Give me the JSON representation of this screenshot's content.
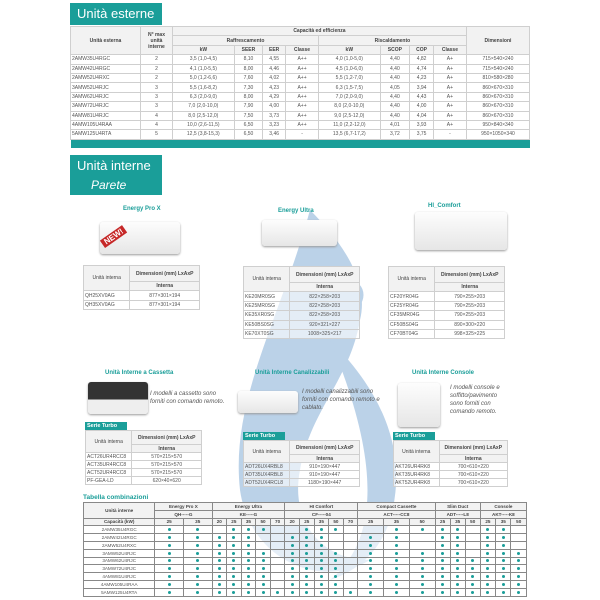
{
  "outdoor": {
    "title": "Unità esterne",
    "headers": {
      "unit": "Unità esterna",
      "max": "N° max unità interne",
      "group": "Capacità ed efficienza",
      "cool": "Raffrescamento",
      "heat": "Riscaldamento",
      "dim": "Dimensioni",
      "kw": "kW",
      "seer": "SEER",
      "eer": "EER",
      "classe": "Classe",
      "scop": "SCOP",
      "cop": "COP"
    },
    "rows": [
      [
        "2AMW35U4RGC",
        "2",
        "3,5 (1,0-4,5)",
        "8,10",
        "4,55",
        "A++",
        "4,0 (1,0-5,0)",
        "4,40",
        "4,82",
        "A+",
        "715×540×240"
      ],
      [
        "2AMW42U4RGC",
        "2",
        "4,1 (1,0-5,5)",
        "8,00",
        "4,46",
        "A++",
        "4,5 (1,0-6,0)",
        "4,40",
        "4,74",
        "A+",
        "715×540×240"
      ],
      [
        "2AMW52U4RXC",
        "2",
        "5,0 (1,2-6,6)",
        "7,60",
        "4,02",
        "A++",
        "5,5 (1,2-7,0)",
        "4,40",
        "4,23",
        "A+",
        "810×580×280"
      ],
      [
        "3AMW52U4RJC",
        "3",
        "5,5 (1,6-8,2)",
        "7,30",
        "4,23",
        "A++",
        "6,3 (1,5-7,5)",
        "4,05",
        "3,94",
        "A+",
        "860×670×310"
      ],
      [
        "3AMW62U4RJC",
        "3",
        "6,3 (2,0-9,0)",
        "8,00",
        "4,29",
        "A++",
        "7,0 (2,0-9,0)",
        "4,40",
        "4,43",
        "A+",
        "860×670×310"
      ],
      [
        "3AMW72U4RJC",
        "3",
        "7,0 (2,0-10,0)",
        "7,90",
        "4,00",
        "A++",
        "8,0 (2,0-10,0)",
        "4,40",
        "4,00",
        "A+",
        "860×670×310"
      ],
      [
        "4AMW81U4RJC",
        "4",
        "8,0 (2,5-12,0)",
        "7,50",
        "3,73",
        "A++",
        "9,0 (2,5-12,0)",
        "4,40",
        "4,04",
        "A+",
        "860×670×310"
      ],
      [
        "4AMW105U4RAA",
        "4",
        "10,0 (2,6-11,5)",
        "6,50",
        "3,23",
        "A++",
        "11,0 (2,2-12,0)",
        "4,01",
        "3,93",
        "A+",
        "950×840×340"
      ],
      [
        "5AMW125U4RTA",
        "5",
        "12,5 (3,8-15,3)",
        "6,50",
        "3,46",
        "-",
        "13,5 (6,7-17,2)",
        "3,72",
        "3,75",
        "-",
        "950×1050×340"
      ]
    ]
  },
  "indoor": {
    "title": "Unità interne",
    "subtitle": "Parete"
  },
  "th": {
    "unit": "Unità interna",
    "dim": "Dimensioni (mm) LxAxP",
    "interna": "Interna"
  },
  "wall": [
    {
      "name": "Energy Pro X",
      "badge": "NEW!",
      "rows": [
        [
          "QH25XV0AG",
          "877×301×194"
        ],
        [
          "QH35XV0AG",
          "877×301×194"
        ]
      ]
    },
    {
      "name": "Energy Ultra",
      "rows": [
        [
          "KE20MR0SG",
          "822×258×203"
        ],
        [
          "KE25MR0SG",
          "822×258×203"
        ],
        [
          "KE35XR0SG",
          "822×258×203"
        ],
        [
          "KE50BS0SG",
          "920×321×227"
        ],
        [
          "KE70XT0SG",
          "1008×325×217"
        ]
      ]
    },
    {
      "name": "HI_Comfort",
      "rows": [
        [
          "CF20YR04G",
          "790×255×203"
        ],
        [
          "CF25YR04G",
          "790×255×203"
        ],
        [
          "CF35MR04G",
          "790×255×203"
        ],
        [
          "CF50BS04G",
          "890×300×220"
        ],
        [
          "CF70BT04G",
          "998×325×225"
        ]
      ]
    }
  ],
  "other": [
    {
      "name": "Unità Interne a Cassetta",
      "note": "I modelli a cassetto sono forniti con comando remoto.",
      "serie": "Serie Turbo",
      "rows": [
        [
          "ACT26UR4RCC8",
          "570×215×570"
        ],
        [
          "ACT35UR4RCC8",
          "570×215×570"
        ],
        [
          "ACT52UR4RCC8",
          "570×215×570"
        ],
        [
          "PF-GEA-LD",
          "620×40×620"
        ]
      ]
    },
    {
      "name": "Unità Interne Canalizzabili",
      "note": "I modelli canalizzabili sono forniti con comando remoto e cablato.",
      "serie": "Serie Turbo",
      "rows": [
        [
          "ADT26UX4RBL8",
          "910×190×447"
        ],
        [
          "ADT35UX4RBL8",
          "910×190×447"
        ],
        [
          "ADT52UX4RCL8",
          "1180×190×447"
        ]
      ]
    },
    {
      "name": "Unità Interne Console",
      "note": "I modelli console e soffitto/pavimento sono forniti con comando remoto.",
      "serie": "Serie Turbo",
      "rows": [
        [
          "AKT26UR4RK8",
          "700×610×220"
        ],
        [
          "AKT35UR4RK8",
          "700×610×220"
        ],
        [
          "AKT52UR4RK8",
          "700×610×220"
        ]
      ]
    }
  ],
  "comb": {
    "title": "Tabella combinazioni",
    "corner": "Unità interne",
    "caplabel": "Capacità (kW)",
    "groups": [
      {
        "name": "Energy Pro X",
        "code": "QH-----G",
        "caps": [
          "25",
          "35"
        ]
      },
      {
        "name": "Energy Ultra",
        "code": "KE-----G",
        "caps": [
          "20",
          "25",
          "35",
          "50",
          "70"
        ]
      },
      {
        "name": "HI Comfort",
        "code": "CF-----04",
        "caps": [
          "20",
          "25",
          "35",
          "50",
          "70"
        ]
      },
      {
        "name": "Compact Cassette",
        "code": "ACT-----CC8",
        "caps": [
          "25",
          "35",
          "50"
        ]
      },
      {
        "name": "Slim Duct",
        "code": "ADT-----L8",
        "caps": [
          "25",
          "35",
          "50"
        ]
      },
      {
        "name": "Console",
        "code": "AKT-----K8",
        "caps": [
          "25",
          "35",
          "50"
        ]
      }
    ],
    "rows": [
      {
        "unit": "2AMW35U4RGC",
        "m": "110111001110011110110"
      },
      {
        "unit": "2AMW42U4RGC",
        "m": "111110011100110110110"
      },
      {
        "unit": "2AMW52U4RXC",
        "m": "111110011100110110110"
      },
      {
        "unit": "3AMW52U4RJC",
        "m": "111111011110111110111"
      },
      {
        "unit": "3AMW62U4RJC",
        "m": "111111011110111111111"
      },
      {
        "unit": "3AMW72U4RJC",
        "m": "111111011110111111111"
      },
      {
        "unit": "4AMW81U4RJC",
        "m": "111111011110111111111"
      },
      {
        "unit": "4AMW105U4RAA",
        "m": "111111011110111111111"
      },
      {
        "unit": "5AMW125U4RTA",
        "m": "111111111111111111111"
      }
    ]
  },
  "colors": {
    "accent": "#1a9e99",
    "watermark": "#3f7fc0"
  }
}
